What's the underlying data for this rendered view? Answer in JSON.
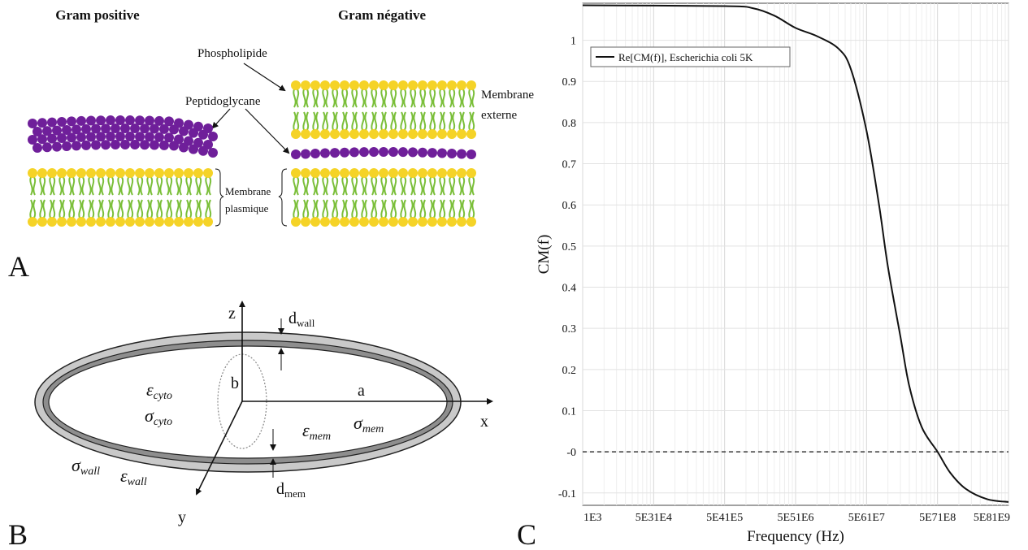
{
  "panel_a": {
    "letter": "A",
    "gram_positive": "Gram positive",
    "gram_negative": "Gram négative",
    "phospholipide": "Phospholipide",
    "peptidoglycane": "Peptidoglycane",
    "membrane_externe_1": "Membrane",
    "membrane_externe_2": "externe",
    "membrane_plasmique_1": "Membrane",
    "membrane_plasmique_2": "plasmique",
    "colors": {
      "head": "#f5d327",
      "tail": "#7bbf3a",
      "peptido": "#6f1f9a"
    }
  },
  "panel_b": {
    "letter": "B",
    "z": "z",
    "x": "x",
    "y": "y",
    "a": "a",
    "b": "b",
    "d_wall": "d",
    "d_wall_sub": "wall",
    "d_mem": "d",
    "d_mem_sub": "mem",
    "eps_cyto": "ε",
    "eps_cyto_sub": "cyto",
    "sigma_cyto": "σ",
    "sigma_cyto_sub": "cyto",
    "eps_mem": "ε",
    "eps_mem_sub": "mem",
    "sigma_mem": "σ",
    "sigma_mem_sub": "mem",
    "sigma_wall": "σ",
    "sigma_wall_sub": "wall",
    "eps_wall": "ε",
    "eps_wall_sub": "wall"
  },
  "panel_c": {
    "letter": "C",
    "chart_data": {
      "type": "line",
      "xlabel": "Frequency (Hz)",
      "ylabel": "CM(f)",
      "x_scale": "log",
      "xlim": [
        1000,
        1000000000
      ],
      "ylim": [
        -0.13,
        1.09
      ],
      "x_tick_labels": [
        "1E3",
        "5E31E4",
        "5E41E5",
        "5E51E6",
        "5E61E7",
        "5E71E8",
        "5E81E9"
      ],
      "y_ticks": [
        -0.1,
        0,
        0.1,
        0.2,
        0.3,
        0.4,
        0.5,
        0.6,
        0.7,
        0.8,
        0.9,
        1
      ],
      "y_tick_labels": [
        "-0.1",
        "-0",
        "0.1",
        "0.2",
        "0.3",
        "0.4",
        "0.5",
        "0.6",
        "0.7",
        "0.8",
        "0.9",
        "1"
      ],
      "grid": true,
      "legend_position": "top-left",
      "series": [
        {
          "name": "Re[CM(f)], Escherichia coli 5K",
          "x": [
            1000,
            100000,
            250000,
            500000,
            1000000,
            2000000,
            4000000,
            6000000,
            10000000,
            15000000,
            20000000,
            30000000,
            40000000,
            60000000,
            100000000,
            150000000,
            250000000,
            500000000,
            1000000000
          ],
          "y": [
            1.085,
            1.083,
            1.078,
            1.06,
            1.03,
            1.01,
            0.98,
            0.93,
            0.78,
            0.6,
            0.45,
            0.28,
            0.16,
            0.06,
            0.0,
            -0.05,
            -0.09,
            -0.115,
            -0.122
          ]
        }
      ],
      "reference_line": {
        "y": 0,
        "style": "dashed"
      }
    }
  }
}
